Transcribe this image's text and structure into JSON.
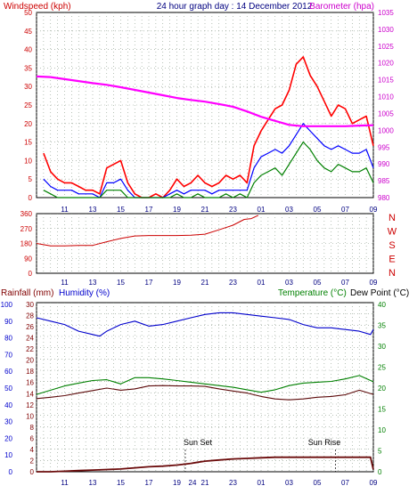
{
  "chart_data": [
    {
      "type": "line",
      "title": "24 hour graph day : 14 December 2012",
      "left_axis_label": "Windspeed (kph)",
      "right_axis_label": "Barometer (hpa)",
      "y_left_ticks": [
        "0",
        "5",
        "10",
        "15",
        "20",
        "25",
        "30",
        "35",
        "40",
        "45",
        "50"
      ],
      "y_right_ticks": [
        "980",
        "985",
        "990",
        "995",
        "1000",
        "1005",
        "1010",
        "1015",
        "1020",
        "1025",
        "1030",
        "1035"
      ],
      "ylim_left": [
        0,
        50
      ],
      "ylim_right": [
        980,
        1035
      ],
      "x_ticks": [
        "11",
        "13",
        "15",
        "17",
        "19",
        "21",
        "23",
        "01",
        "03",
        "05",
        "07",
        "09"
      ],
      "series": [
        {
          "kind": "gust",
          "color": "#ff0000",
          "x": [
            9.5,
            10,
            10.5,
            11,
            11.5,
            12,
            12.5,
            13,
            13.5,
            14,
            14.5,
            15,
            15.5,
            16,
            16.5,
            17,
            17.5,
            18,
            18.5,
            19,
            19.5,
            20,
            20.5,
            21,
            21.5,
            22,
            22.5,
            23,
            23.5,
            24,
            24.5,
            25,
            25.5,
            26,
            26.5,
            27,
            27.5,
            28,
            28.5,
            29,
            29.5,
            30,
            30.5,
            31,
            31.5,
            32,
            32.5,
            33
          ],
          "values": [
            12,
            7,
            5,
            4,
            4,
            3,
            2,
            2,
            1,
            8,
            9,
            10,
            4,
            1,
            0,
            0,
            1,
            0,
            2,
            5,
            3,
            4,
            6,
            4,
            3,
            4,
            6,
            5,
            6,
            4,
            14,
            18,
            21,
            24,
            25,
            29,
            36,
            38,
            33,
            30,
            26,
            22,
            25,
            24,
            20,
            21,
            22,
            14
          ]
        },
        {
          "kind": "average",
          "color": "#0000ff",
          "x": [
            9.5,
            10,
            10.5,
            11,
            11.5,
            12,
            12.5,
            13,
            13.5,
            14,
            14.5,
            15,
            15.5,
            16,
            16.5,
            17,
            17.5,
            18,
            18.5,
            19,
            19.5,
            20,
            20.5,
            21,
            21.5,
            22,
            22.5,
            23,
            23.5,
            24,
            24.5,
            25,
            25.5,
            26,
            26.5,
            27,
            27.5,
            28,
            28.5,
            29,
            29.5,
            30,
            30.5,
            31,
            31.5,
            32,
            32.5,
            33
          ],
          "values": [
            5,
            3,
            2,
            2,
            2,
            1,
            1,
            1,
            0,
            4,
            4,
            5,
            2,
            0,
            0,
            0,
            0,
            0,
            1,
            2,
            1,
            2,
            2,
            2,
            1,
            2,
            2,
            2,
            2,
            2,
            8,
            11,
            12,
            13,
            12,
            14,
            17,
            20,
            18,
            16,
            14,
            13,
            14,
            13,
            12,
            12,
            13,
            8
          ]
        },
        {
          "kind": "wind",
          "color": "#008000",
          "x": [
            9.5,
            10,
            10.5,
            11,
            11.5,
            12,
            12.5,
            13,
            13.5,
            14,
            14.5,
            15,
            15.5,
            16,
            16.5,
            17,
            17.5,
            18,
            18.5,
            19,
            19.5,
            20,
            20.5,
            21,
            21.5,
            22,
            22.5,
            23,
            23.5,
            24,
            24.5,
            25,
            25.5,
            26,
            26.5,
            27,
            27.5,
            28,
            28.5,
            29,
            29.5,
            30,
            30.5,
            31,
            31.5,
            32,
            32.5,
            33
          ],
          "values": [
            2,
            1,
            0,
            0,
            0,
            0,
            0,
            0,
            0,
            2,
            2,
            2,
            0,
            0,
            0,
            0,
            0,
            0,
            0,
            1,
            0,
            0,
            1,
            0,
            0,
            0,
            1,
            0,
            1,
            0,
            4,
            6,
            7,
            8,
            6,
            9,
            12,
            15,
            13,
            10,
            8,
            7,
            9,
            8,
            7,
            7,
            8,
            4
          ]
        },
        {
          "kind": "barometer",
          "axis": "right",
          "color": "#ff00ff",
          "x": [
            9,
            10,
            11,
            12,
            13,
            14,
            15,
            16,
            17,
            18,
            19,
            20,
            21,
            22,
            23,
            24,
            25,
            26,
            27,
            28,
            29,
            30,
            31,
            32,
            33
          ],
          "values": [
            1016,
            1015.8,
            1015.2,
            1014.6,
            1014.0,
            1013.5,
            1012.8,
            1012.0,
            1011.2,
            1010.4,
            1009.6,
            1009.0,
            1008.5,
            1007.8,
            1007.0,
            1005.6,
            1004.0,
            1002.8,
            1001.6,
            1001.2,
            1001.2,
            1001.2,
            1001.2,
            1001.4,
            1001.5
          ]
        }
      ]
    },
    {
      "type": "line",
      "y_ticks": [
        "360",
        "270",
        "180",
        "90",
        "0"
      ],
      "ylim": [
        0,
        360
      ],
      "compass": [
        "N",
        "W",
        "S",
        "E",
        "N"
      ],
      "x_ticks": [
        "11",
        "13",
        "15",
        "17",
        "19",
        "21",
        "23",
        "01",
        "03",
        "05",
        "07",
        "09"
      ],
      "series": [
        {
          "kind": "direction",
          "color": "#cc0000",
          "x": [
            9,
            10,
            11,
            12,
            13,
            14,
            15,
            16,
            17,
            18,
            19,
            20,
            21,
            22,
            23,
            23.8,
            24.3,
            24.8
          ],
          "values": [
            180,
            165,
            165,
            168,
            168,
            190,
            210,
            225,
            228,
            228,
            228,
            230,
            236,
            262,
            290,
            325,
            330,
            350
          ]
        }
      ]
    },
    {
      "type": "line",
      "left_labels": [
        "Rainfall (mm)",
        "Humidity (%)"
      ],
      "right_labels": [
        "Temperature (°C)",
        "Dew Point (°C)"
      ],
      "y_rain_ticks": [
        "0",
        "2",
        "4",
        "6",
        "8",
        "10",
        "12",
        "14",
        "16",
        "18",
        "20",
        "22",
        "24",
        "26",
        "28",
        "30"
      ],
      "y_hum_ticks": [
        "0",
        "10",
        "20",
        "30",
        "40",
        "50",
        "60",
        "70",
        "80",
        "90",
        "100"
      ],
      "y_temp_ticks": [
        "0",
        "5",
        "10",
        "15",
        "20",
        "25",
        "30",
        "35",
        "40"
      ],
      "ylim_rain": [
        0,
        30
      ],
      "ylim_temp": [
        0,
        40
      ],
      "x_ticks": [
        "11",
        "13",
        "15",
        "17",
        "19",
        "21",
        "23",
        "01",
        "03",
        "05",
        "07",
        "09"
      ],
      "annotations": [
        "Sun Set",
        "Sun Rise"
      ],
      "overlap_glyphs": "24",
      "series": [
        {
          "kind": "humidity",
          "color": "#0000cc",
          "x": [
            9,
            10,
            11,
            12,
            13,
            13.5,
            14,
            15,
            16,
            17,
            18,
            19,
            20,
            21,
            22,
            23,
            24,
            25,
            26,
            27,
            28,
            29,
            30,
            31,
            32,
            32.8,
            33
          ],
          "values": [
            92,
            90,
            88,
            84,
            82,
            81,
            84,
            88,
            90,
            87,
            88,
            90,
            92,
            94,
            95,
            95,
            94,
            93,
            92,
            91,
            88,
            86,
            86,
            85,
            84,
            82,
            85
          ]
        },
        {
          "kind": "temperature",
          "axis": "temp",
          "color": "#008000",
          "x": [
            9,
            10,
            11,
            12,
            13,
            14,
            15,
            16,
            17,
            18,
            19,
            20,
            21,
            22,
            23,
            24,
            25,
            26,
            27,
            28,
            29,
            30,
            31,
            32,
            33
          ],
          "values": [
            18.5,
            19.5,
            20.5,
            21.2,
            21.8,
            22.0,
            21.0,
            22.5,
            22.5,
            22.2,
            21.8,
            21.4,
            21.0,
            20.6,
            20.2,
            19.6,
            19.0,
            19.6,
            20.6,
            21.2,
            21.4,
            21.6,
            22.2,
            23.0,
            21.5
          ]
        },
        {
          "kind": "dewpoint",
          "axis": "temp",
          "color": "#5c0a0a",
          "x": [
            9,
            10,
            11,
            12,
            13,
            14,
            15,
            16,
            17,
            18,
            19,
            20,
            21,
            22,
            23,
            24,
            25,
            26,
            27,
            28,
            29,
            30,
            31,
            32,
            33
          ],
          "values": [
            17.5,
            17.8,
            18.2,
            18.8,
            19.4,
            20.0,
            19.5,
            19.8,
            20.5,
            20.6,
            20.5,
            20.5,
            20.4,
            19.8,
            19.3,
            18.8,
            18.0,
            17.4,
            17.2,
            17.4,
            17.8,
            18.0,
            18.4,
            19.5,
            18.5
          ]
        },
        {
          "kind": "rainfall",
          "color": "#6b0b0b",
          "x": [
            9,
            10,
            11,
            12,
            13,
            14,
            15,
            16,
            17,
            18,
            19,
            20,
            20.5,
            21,
            22,
            23,
            24,
            25,
            26,
            27,
            28,
            29,
            30,
            31,
            32,
            32.8,
            33
          ],
          "values": [
            0,
            0,
            0.1,
            0.2,
            0.3,
            0.4,
            0.5,
            0.7,
            0.9,
            1.0,
            1.2,
            1.5,
            1.7,
            1.9,
            2.1,
            2.3,
            2.4,
            2.5,
            2.6,
            2.6,
            2.6,
            2.6,
            2.6,
            2.6,
            2.6,
            2.6,
            0.4
          ]
        }
      ]
    }
  ]
}
